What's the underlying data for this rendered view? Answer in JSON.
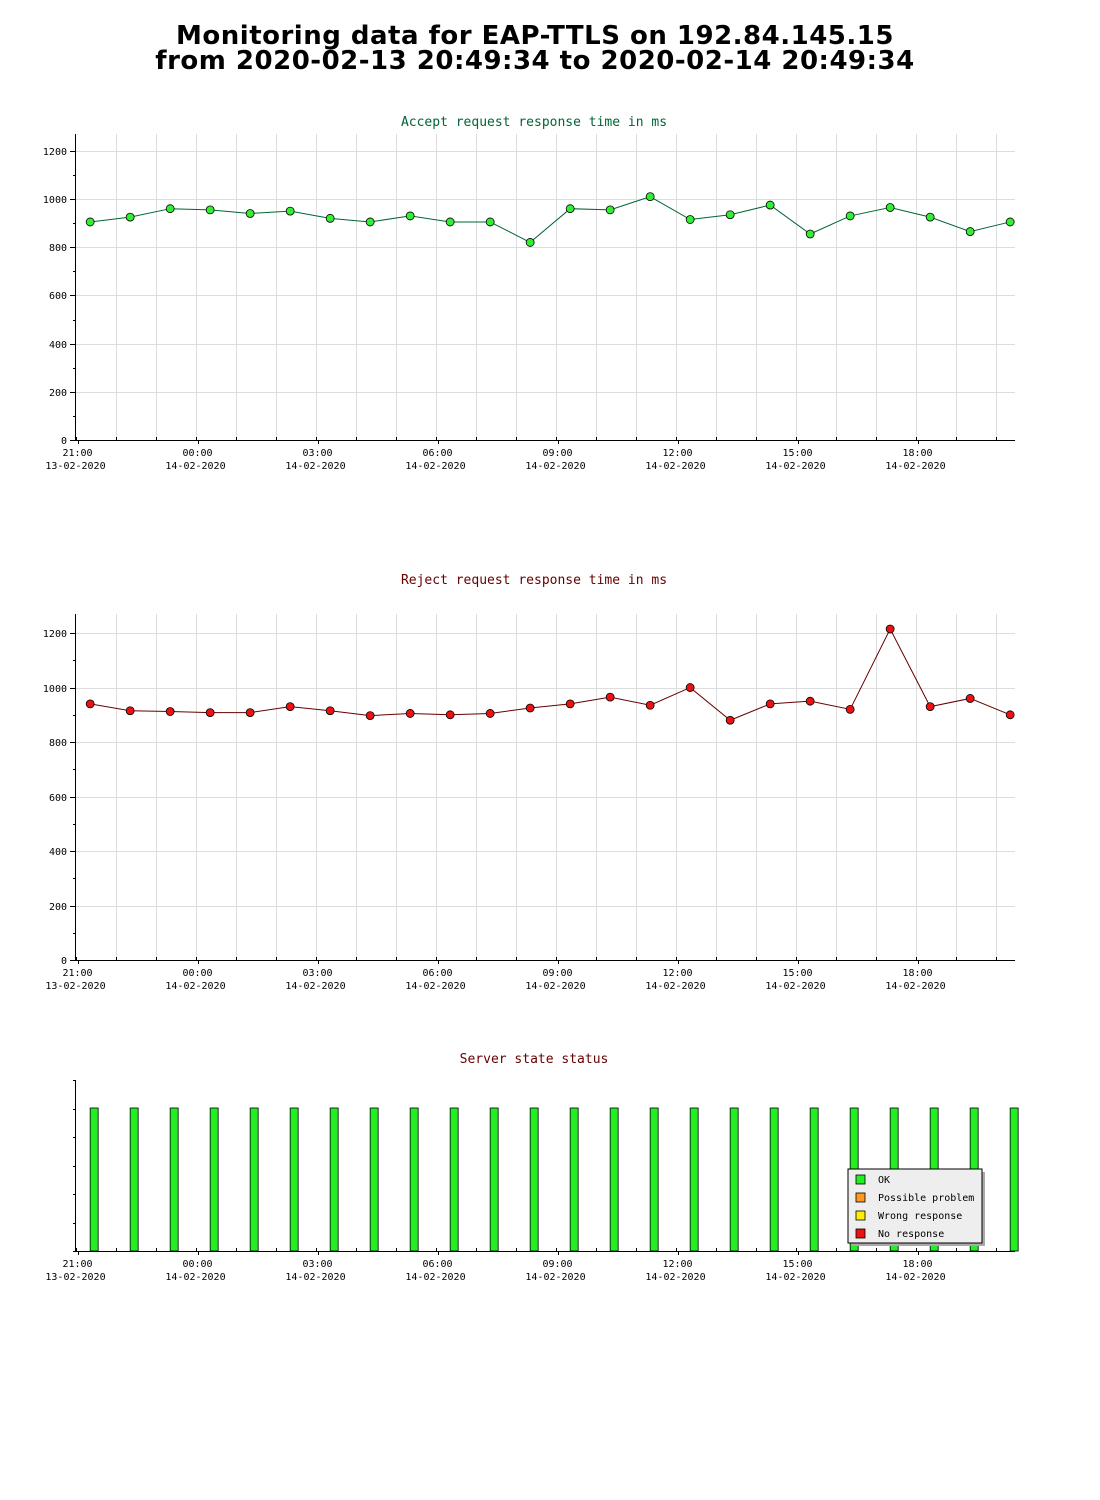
{
  "header": {
    "title_line1": "Monitoring data for EAP-TTLS on 192.84.145.15",
    "title_line2": "from 2020-02-13 20:49:34 to 2020-02-14 20:49:34"
  },
  "colors": {
    "accept_line": "#006633",
    "accept_marker": "#33ee33",
    "reject_line": "#660000",
    "reject_marker": "#ee1111",
    "grid": "#dddddd",
    "ok": "#22ee22",
    "possible_problem": "#ff9922",
    "wrong_response": "#ffee00",
    "no_response": "#ee1111"
  },
  "x_ticks": [
    {
      "time": "21:00",
      "date": "13-02-2020"
    },
    {
      "time": "00:00",
      "date": "14-02-2020"
    },
    {
      "time": "03:00",
      "date": "14-02-2020"
    },
    {
      "time": "06:00",
      "date": "14-02-2020"
    },
    {
      "time": "09:00",
      "date": "14-02-2020"
    },
    {
      "time": "12:00",
      "date": "14-02-2020"
    },
    {
      "time": "15:00",
      "date": "14-02-2020"
    },
    {
      "time": "18:00",
      "date": "14-02-2020"
    }
  ],
  "chart_data": [
    {
      "type": "line",
      "title": "Accept request response time in ms",
      "x": [
        "21:10",
        "22:10",
        "23:10",
        "00:10",
        "01:10",
        "02:10",
        "03:10",
        "04:10",
        "05:10",
        "06:10",
        "07:10",
        "08:10",
        "09:10",
        "10:10",
        "11:10",
        "12:10",
        "13:10",
        "14:10",
        "15:10",
        "16:10",
        "17:10",
        "18:10",
        "19:10",
        "20:10"
      ],
      "values": [
        905,
        925,
        960,
        955,
        940,
        950,
        920,
        905,
        930,
        905,
        905,
        820,
        960,
        955,
        1010,
        915,
        935,
        975,
        855,
        930,
        965,
        925,
        865,
        905
      ],
      "ylim": [
        0,
        1270
      ],
      "yticks": [
        0,
        200,
        400,
        600,
        800,
        1000,
        1200
      ],
      "grid": true
    },
    {
      "type": "line",
      "title": "Reject request response time in ms",
      "x": [
        "21:10",
        "22:10",
        "23:10",
        "00:10",
        "01:10",
        "02:10",
        "03:10",
        "04:10",
        "05:10",
        "06:10",
        "07:10",
        "08:10",
        "09:10",
        "10:10",
        "11:10",
        "12:10",
        "13:10",
        "14:10",
        "15:10",
        "16:10",
        "17:10",
        "18:10",
        "19:10",
        "20:10"
      ],
      "values": [
        940,
        915,
        912,
        908,
        908,
        930,
        915,
        897,
        905,
        900,
        905,
        925,
        940,
        965,
        935,
        1000,
        880,
        940,
        950,
        920,
        1215,
        930,
        960,
        900
      ],
      "ylim": [
        0,
        1270
      ],
      "yticks": [
        0,
        200,
        400,
        600,
        800,
        1000,
        1200
      ],
      "grid": true
    },
    {
      "type": "bar",
      "title": "Server state status",
      "x": [
        "21:10",
        "22:10",
        "23:10",
        "00:10",
        "01:10",
        "02:10",
        "03:10",
        "04:10",
        "05:10",
        "06:10",
        "07:10",
        "08:10",
        "09:10",
        "10:10",
        "11:10",
        "12:10",
        "13:10",
        "14:10",
        "15:10",
        "16:10",
        "17:10",
        "18:10",
        "19:10",
        "20:10"
      ],
      "states": [
        "OK",
        "OK",
        "OK",
        "OK",
        "OK",
        "OK",
        "OK",
        "OK",
        "OK",
        "OK",
        "OK",
        "OK",
        "OK",
        "OK",
        "OK",
        "OK",
        "OK",
        "OK",
        "OK",
        "OK",
        "OK",
        "OK",
        "OK",
        "OK"
      ],
      "legend": [
        "OK",
        "Possible problem",
        "Wrong response",
        "No response"
      ],
      "legend_position": "bottom-right",
      "grid": false
    }
  ]
}
